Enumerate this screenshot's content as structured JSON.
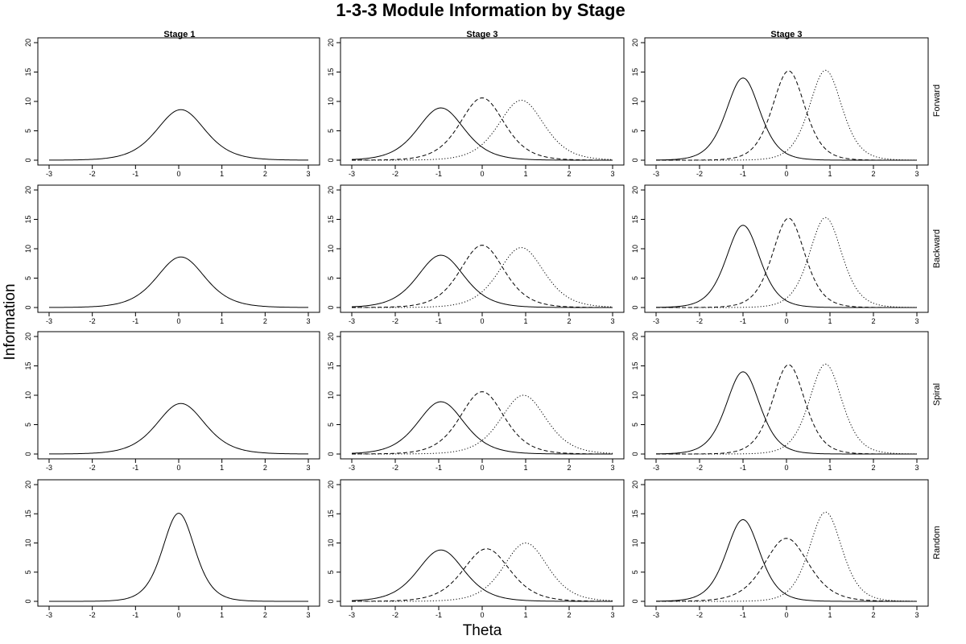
{
  "figure": {
    "title": "1-3-3 Module Information by Stage",
    "column_titles": [
      "Stage 1",
      "Stage 3",
      "Stage 3"
    ],
    "row_labels": [
      "Forward",
      "Backward",
      "Spiral",
      "Random"
    ],
    "xlabel": "Theta",
    "ylabel": "Information"
  },
  "chart_data": {
    "type": "line",
    "xlim": [
      -3,
      3
    ],
    "ylim": [
      0,
      20
    ],
    "x_ticks": [
      -3,
      -2,
      -1,
      0,
      1,
      2,
      3
    ],
    "y_ticks": [
      0,
      5,
      10,
      15,
      20
    ],
    "line_styles": [
      "solid",
      "dashed",
      "dotted"
    ],
    "panels": [
      {
        "row": "Forward",
        "col": 0,
        "curves": [
          {
            "style": "solid",
            "peak_theta": 0.05,
            "peak_info": 8.6,
            "spread": 0.75
          }
        ]
      },
      {
        "row": "Forward",
        "col": 1,
        "curves": [
          {
            "style": "solid",
            "peak_theta": -0.95,
            "peak_info": 8.9,
            "spread": 0.72
          },
          {
            "style": "dashed",
            "peak_theta": 0.0,
            "peak_info": 10.6,
            "spread": 0.68
          },
          {
            "style": "dotted",
            "peak_theta": 0.9,
            "peak_info": 10.2,
            "spread": 0.7
          }
        ]
      },
      {
        "row": "Forward",
        "col": 2,
        "curves": [
          {
            "style": "solid",
            "peak_theta": -1.0,
            "peak_info": 14.0,
            "spread": 0.52
          },
          {
            "style": "dashed",
            "peak_theta": 0.05,
            "peak_info": 15.2,
            "spread": 0.5
          },
          {
            "style": "dotted",
            "peak_theta": 0.9,
            "peak_info": 15.3,
            "spread": 0.5
          }
        ]
      },
      {
        "row": "Backward",
        "col": 0,
        "curves": [
          {
            "style": "solid",
            "peak_theta": 0.05,
            "peak_info": 8.6,
            "spread": 0.75
          }
        ]
      },
      {
        "row": "Backward",
        "col": 1,
        "curves": [
          {
            "style": "solid",
            "peak_theta": -0.95,
            "peak_info": 8.9,
            "spread": 0.72
          },
          {
            "style": "dashed",
            "peak_theta": 0.0,
            "peak_info": 10.6,
            "spread": 0.68
          },
          {
            "style": "dotted",
            "peak_theta": 0.9,
            "peak_info": 10.2,
            "spread": 0.7
          }
        ]
      },
      {
        "row": "Backward",
        "col": 2,
        "curves": [
          {
            "style": "solid",
            "peak_theta": -1.0,
            "peak_info": 14.0,
            "spread": 0.52
          },
          {
            "style": "dashed",
            "peak_theta": 0.05,
            "peak_info": 15.2,
            "spread": 0.5
          },
          {
            "style": "dotted",
            "peak_theta": 0.9,
            "peak_info": 15.3,
            "spread": 0.5
          }
        ]
      },
      {
        "row": "Spiral",
        "col": 0,
        "curves": [
          {
            "style": "solid",
            "peak_theta": 0.05,
            "peak_info": 8.6,
            "spread": 0.75
          }
        ]
      },
      {
        "row": "Spiral",
        "col": 1,
        "curves": [
          {
            "style": "solid",
            "peak_theta": -0.95,
            "peak_info": 8.9,
            "spread": 0.72
          },
          {
            "style": "dashed",
            "peak_theta": 0.0,
            "peak_info": 10.6,
            "spread": 0.68
          },
          {
            "style": "dotted",
            "peak_theta": 0.95,
            "peak_info": 10.0,
            "spread": 0.7
          }
        ]
      },
      {
        "row": "Spiral",
        "col": 2,
        "curves": [
          {
            "style": "solid",
            "peak_theta": -1.0,
            "peak_info": 14.0,
            "spread": 0.52
          },
          {
            "style": "dashed",
            "peak_theta": 0.05,
            "peak_info": 15.2,
            "spread": 0.5
          },
          {
            "style": "dotted",
            "peak_theta": 0.9,
            "peak_info": 15.3,
            "spread": 0.5
          }
        ]
      },
      {
        "row": "Random",
        "col": 0,
        "curves": [
          {
            "style": "solid",
            "peak_theta": 0.0,
            "peak_info": 15.1,
            "spread": 0.5
          }
        ]
      },
      {
        "row": "Random",
        "col": 1,
        "curves": [
          {
            "style": "solid",
            "peak_theta": -0.95,
            "peak_info": 8.8,
            "spread": 0.72
          },
          {
            "style": "dashed",
            "peak_theta": 0.1,
            "peak_info": 9.0,
            "spread": 0.72
          },
          {
            "style": "dotted",
            "peak_theta": 1.0,
            "peak_info": 10.0,
            "spread": 0.68
          }
        ]
      },
      {
        "row": "Random",
        "col": 2,
        "curves": [
          {
            "style": "solid",
            "peak_theta": -1.0,
            "peak_info": 14.0,
            "spread": 0.52
          },
          {
            "style": "dashed",
            "peak_theta": 0.0,
            "peak_info": 10.8,
            "spread": 0.68
          },
          {
            "style": "dotted",
            "peak_theta": 0.9,
            "peak_info": 15.3,
            "spread": 0.5
          }
        ]
      }
    ]
  }
}
